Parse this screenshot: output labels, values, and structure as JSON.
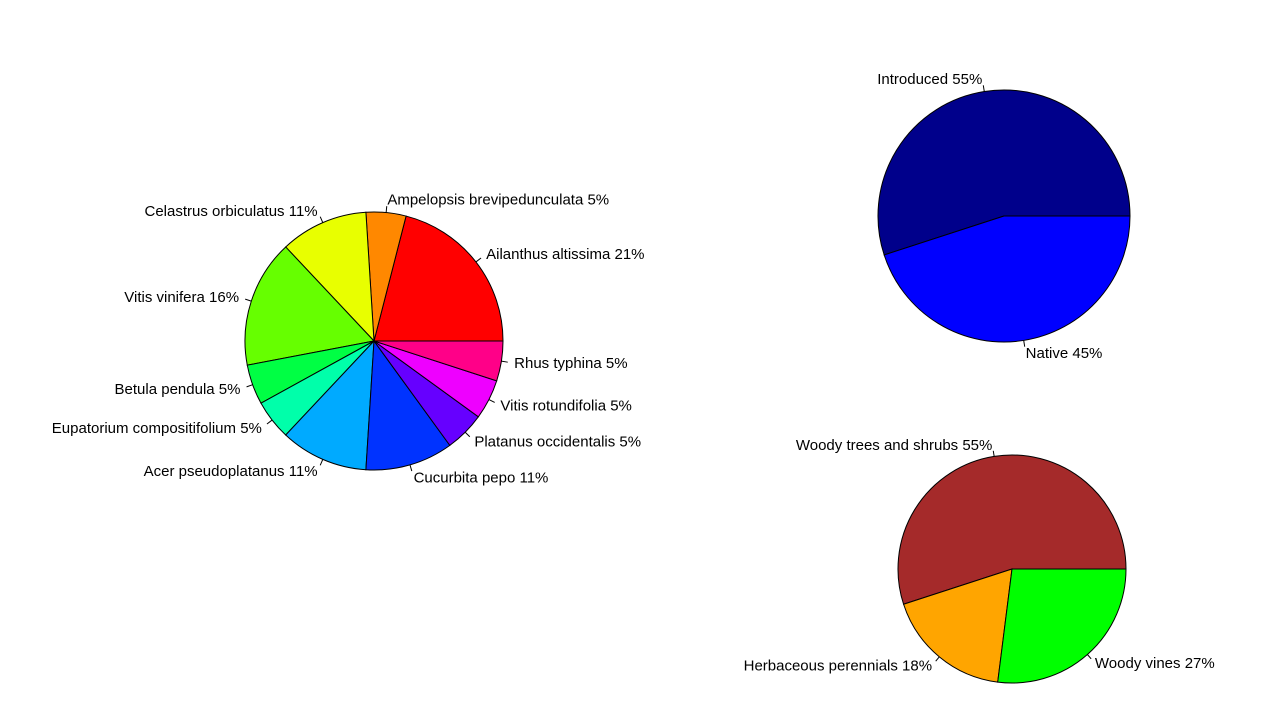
{
  "chart_data": [
    {
      "type": "pie",
      "title": "",
      "slices": [
        {
          "label": "Ailanthus altissima",
          "pct": "21%",
          "value": 21,
          "color": "#FF0000"
        },
        {
          "label": "Ampelopsis brevipedunculata",
          "pct": "5%",
          "value": 5,
          "color": "#FF8800"
        },
        {
          "label": "Celastrus orbiculatus",
          "pct": "11%",
          "value": 11,
          "color": "#E8FF00"
        },
        {
          "label": "Vitis vinifera",
          "pct": "16%",
          "value": 16,
          "color": "#66FF00"
        },
        {
          "label": "Betula pendula",
          "pct": "5%",
          "value": 5,
          "color": "#00FF44"
        },
        {
          "label": "Eupatorium compositifolium",
          "pct": "5%",
          "value": 5,
          "color": "#00FFAA"
        },
        {
          "label": "Acer pseudoplatanus",
          "pct": "11%",
          "value": 11,
          "color": "#00AAFF"
        },
        {
          "label": "Cucurbita pepo",
          "pct": "11%",
          "value": 11,
          "color": "#0033FF"
        },
        {
          "label": "Platanus occidentalis",
          "pct": "5%",
          "value": 5,
          "color": "#6600FF"
        },
        {
          "label": "Vitis rotundifolia",
          "pct": "5%",
          "value": 5,
          "color": "#EE00FF"
        },
        {
          "label": "Rhus typhina",
          "pct": "5%",
          "value": 5,
          "color": "#FF0088"
        }
      ]
    },
    {
      "type": "pie",
      "title": "",
      "slices": [
        {
          "label": "Introduced",
          "pct": "55%",
          "value": 55,
          "color": "#00008B"
        },
        {
          "label": "Native",
          "pct": "45%",
          "value": 45,
          "color": "#0000FF"
        }
      ]
    },
    {
      "type": "pie",
      "title": "",
      "slices": [
        {
          "label": "Woody trees and shrubs",
          "pct": "55%",
          "value": 55,
          "color": "#A52A2A"
        },
        {
          "label": "Herbaceous perennials",
          "pct": "18%",
          "value": 18,
          "color": "#FFA500"
        },
        {
          "label": "Woody vines",
          "pct": "27%",
          "value": 27,
          "color": "#00FF00"
        }
      ]
    }
  ]
}
